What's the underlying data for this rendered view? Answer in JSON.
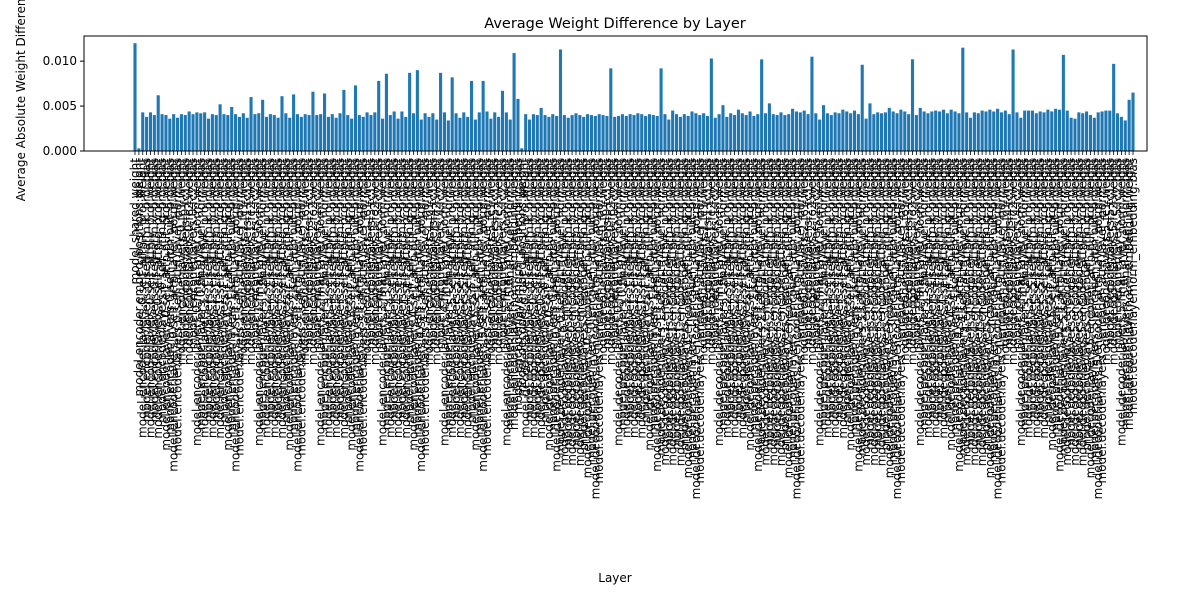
{
  "chart_data": {
    "type": "bar",
    "title": "Average Weight Difference by Layer",
    "xlabel": "Layer",
    "ylabel": "Average Absolute Weight Difference",
    "color": "#1f77b4",
    "ylim": [
      0,
      0.0128
    ],
    "yticks": [
      {
        "value": 0,
        "label": "0.000"
      },
      {
        "value": 0.005,
        "label": "0.005"
      },
      {
        "value": 0.01,
        "label": "0.010"
      }
    ],
    "categories": [
      "model.shared.weight",
      "model.encoder.embed_positions.weight",
      "model.encoder.layers.0.self_attn.k_proj.weight",
      "model.encoder.layers.0.self_attn.k_proj.bias",
      "model.encoder.layers.0.self_attn.v_proj.weight",
      "model.encoder.layers.0.self_attn.v_proj.bias",
      "model.encoder.layers.0.self_attn.q_proj.weight",
      "model.encoder.layers.0.self_attn.q_proj.bias",
      "model.encoder.layers.0.self_attn.out_proj.weight",
      "model.encoder.layers.0.self_attn.out_proj.bias",
      "model.encoder.layers.0.self_attn_layer_norm.weight",
      "model.encoder.layers.0.self_attn_layer_norm.bias",
      "model.encoder.layers.0.fc1.weight",
      "model.encoder.layers.0.fc1.bias",
      "model.encoder.layers.0.fc2.weight",
      "model.encoder.layers.0.fc2.bias",
      "model.encoder.layers.0.final_layer_norm.weight",
      "model.encoder.layers.0.final_layer_norm.bias",
      "model.encoder.layers.1.self_attn.k_proj.weight",
      "model.encoder.layers.1.self_attn.k_proj.bias",
      "model.encoder.layers.1.self_attn.v_proj.weight",
      "model.encoder.layers.1.self_attn.v_proj.bias",
      "model.encoder.layers.1.self_attn.q_proj.weight",
      "model.encoder.layers.1.self_attn.q_proj.bias",
      "model.encoder.layers.1.self_attn.out_proj.weight",
      "model.encoder.layers.1.self_attn.out_proj.bias",
      "model.encoder.layers.1.self_attn_layer_norm.weight",
      "model.encoder.layers.1.self_attn_layer_norm.bias",
      "model.encoder.layers.1.fc1.weight",
      "model.encoder.layers.1.fc1.bias",
      "model.encoder.layers.1.fc2.weight",
      "model.encoder.layers.1.fc2.bias",
      "model.encoder.layers.1.final_layer_norm.weight",
      "model.encoder.layers.1.final_layer_norm.bias",
      "model.encoder.layers.2.self_attn.k_proj.weight",
      "model.encoder.layers.2.self_attn.k_proj.bias",
      "model.encoder.layers.2.self_attn.v_proj.weight",
      "model.encoder.layers.2.self_attn.v_proj.bias",
      "model.encoder.layers.2.self_attn.q_proj.weight",
      "model.encoder.layers.2.self_attn.q_proj.bias",
      "model.encoder.layers.2.self_attn.out_proj.weight",
      "model.encoder.layers.2.self_attn.out_proj.bias",
      "model.encoder.layers.2.self_attn_layer_norm.weight",
      "model.encoder.layers.2.self_attn_layer_norm.bias",
      "model.encoder.layers.2.fc1.weight",
      "model.encoder.layers.2.fc1.bias",
      "model.encoder.layers.2.fc2.weight",
      "model.encoder.layers.2.fc2.bias",
      "model.encoder.layers.2.final_layer_norm.weight",
      "model.encoder.layers.2.final_layer_norm.bias",
      "model.encoder.layers.3.self_attn.k_proj.weight",
      "model.encoder.layers.3.self_attn.k_proj.bias",
      "model.encoder.layers.3.self_attn.v_proj.weight",
      "model.encoder.layers.3.self_attn.v_proj.bias",
      "model.encoder.layers.3.self_attn.q_proj.weight",
      "model.encoder.layers.3.self_attn.q_proj.bias",
      "model.encoder.layers.3.self_attn.out_proj.weight",
      "model.encoder.layers.3.self_attn.out_proj.bias",
      "model.encoder.layers.3.self_attn_layer_norm.weight",
      "model.encoder.layers.3.self_attn_layer_norm.bias",
      "model.encoder.layers.3.fc1.weight",
      "model.encoder.layers.3.fc1.bias",
      "model.encoder.layers.3.fc2.weight",
      "model.encoder.layers.3.fc2.bias",
      "model.encoder.layers.3.final_layer_norm.weight",
      "model.encoder.layers.3.final_layer_norm.bias",
      "model.encoder.layers.4.self_attn.k_proj.weight",
      "model.encoder.layers.4.self_attn.k_proj.bias",
      "model.encoder.layers.4.self_attn.v_proj.weight",
      "model.encoder.layers.4.self_attn.v_proj.bias",
      "model.encoder.layers.4.self_attn.q_proj.weight",
      "model.encoder.layers.4.self_attn.q_proj.bias",
      "model.encoder.layers.4.self_attn.out_proj.weight",
      "model.encoder.layers.4.self_attn.out_proj.bias",
      "model.encoder.layers.4.self_attn_layer_norm.weight",
      "model.encoder.layers.4.self_attn_layer_norm.bias",
      "model.encoder.layers.4.fc1.weight",
      "model.encoder.layers.4.fc1.bias",
      "model.encoder.layers.4.fc2.weight",
      "model.encoder.layers.4.fc2.bias",
      "model.encoder.layers.4.final_layer_norm.weight",
      "model.encoder.layers.4.final_layer_norm.bias",
      "model.encoder.layers.5.self_attn.k_proj.weight",
      "model.encoder.layers.5.self_attn.k_proj.bias",
      "model.encoder.layers.5.self_attn.v_proj.weight",
      "model.encoder.layers.5.self_attn.v_proj.bias",
      "model.encoder.layers.5.self_attn.q_proj.weight",
      "model.encoder.layers.5.self_attn.q_proj.bias",
      "model.encoder.layers.5.self_attn.out_proj.weight",
      "model.encoder.layers.5.self_attn.out_proj.bias",
      "model.encoder.layers.5.self_attn_layer_norm.weight",
      "model.encoder.layers.5.self_attn_layer_norm.bias",
      "model.encoder.layers.5.fc1.weight",
      "model.encoder.layers.5.fc1.bias",
      "model.encoder.layers.5.fc2.weight",
      "model.encoder.layers.5.fc2.bias",
      "model.encoder.layers.5.final_layer_norm.weight",
      "model.encoder.layers.5.final_layer_norm.bias",
      "model.encoder.layernorm_embedding.weight",
      "model.encoder.layernorm_embedding.bias",
      "model.decoder.embed_positions.weight",
      "model.decoder.layers.0.self_attn.k_proj.weight",
      "model.decoder.layers.0.self_attn.k_proj.bias",
      "model.decoder.layers.0.self_attn.v_proj.weight",
      "model.decoder.layers.0.self_attn.v_proj.bias",
      "model.decoder.layers.0.self_attn.q_proj.weight",
      "model.decoder.layers.0.self_attn.q_proj.bias",
      "model.decoder.layers.0.self_attn.out_proj.weight",
      "model.decoder.layers.0.self_attn.out_proj.bias",
      "model.decoder.layers.0.self_attn_layer_norm.weight",
      "model.decoder.layers.0.self_attn_layer_norm.bias",
      "model.decoder.layers.0.encoder_attn.k_proj.weight",
      "model.decoder.layers.0.encoder_attn.k_proj.bias",
      "model.decoder.layers.0.encoder_attn.v_proj.weight",
      "model.decoder.layers.0.encoder_attn.v_proj.bias",
      "model.decoder.layers.0.encoder_attn.q_proj.weight",
      "model.decoder.layers.0.encoder_attn.q_proj.bias",
      "model.decoder.layers.0.encoder_attn.out_proj.weight",
      "model.decoder.layers.0.encoder_attn.out_proj.bias",
      "model.decoder.layers.0.encoder_attn_layer_norm.weight",
      "model.decoder.layers.0.encoder_attn_layer_norm.bias",
      "model.decoder.layers.0.fc1.weight",
      "model.decoder.layers.0.fc1.bias",
      "model.decoder.layers.0.fc2.weight",
      "model.decoder.layers.0.fc2.bias",
      "model.decoder.layers.0.final_layer_norm.weight",
      "model.decoder.layers.0.final_layer_norm.bias",
      "model.decoder.layers.1.self_attn.k_proj.weight",
      "model.decoder.layers.1.self_attn.k_proj.bias",
      "model.decoder.layers.1.self_attn.v_proj.weight",
      "model.decoder.layers.1.self_attn.v_proj.bias",
      "model.decoder.layers.1.self_attn.q_proj.weight",
      "model.decoder.layers.1.self_attn.q_proj.bias",
      "model.decoder.layers.1.self_attn.out_proj.weight",
      "model.decoder.layers.1.self_attn.out_proj.bias",
      "model.decoder.layers.1.self_attn_layer_norm.weight",
      "model.decoder.layers.1.self_attn_layer_norm.bias",
      "model.decoder.layers.1.encoder_attn.k_proj.weight",
      "model.decoder.layers.1.encoder_attn.k_proj.bias",
      "model.decoder.layers.1.encoder_attn.v_proj.weight",
      "model.decoder.layers.1.encoder_attn.v_proj.bias",
      "model.decoder.layers.1.encoder_attn.q_proj.weight",
      "model.decoder.layers.1.encoder_attn.q_proj.bias",
      "model.decoder.layers.1.encoder_attn.out_proj.weight",
      "model.decoder.layers.1.encoder_attn.out_proj.bias",
      "model.decoder.layers.1.encoder_attn_layer_norm.weight",
      "model.decoder.layers.1.encoder_attn_layer_norm.bias",
      "model.decoder.layers.1.fc1.weight",
      "model.decoder.layers.1.fc1.bias",
      "model.decoder.layers.1.fc2.weight",
      "model.decoder.layers.1.fc2.bias",
      "model.decoder.layers.1.final_layer_norm.weight",
      "model.decoder.layers.1.final_layer_norm.bias",
      "model.decoder.layers.2.self_attn.k_proj.weight",
      "model.decoder.layers.2.self_attn.k_proj.bias",
      "model.decoder.layers.2.self_attn.v_proj.weight",
      "model.decoder.layers.2.self_attn.v_proj.bias",
      "model.decoder.layers.2.self_attn.q_proj.weight",
      "model.decoder.layers.2.self_attn.q_proj.bias",
      "model.decoder.layers.2.self_attn.out_proj.weight",
      "model.decoder.layers.2.self_attn.out_proj.bias",
      "model.decoder.layers.2.self_attn_layer_norm.weight",
      "model.decoder.layers.2.self_attn_layer_norm.bias",
      "model.decoder.layers.2.encoder_attn.k_proj.weight",
      "model.decoder.layers.2.encoder_attn.k_proj.bias",
      "model.decoder.layers.2.encoder_attn.v_proj.weight",
      "model.decoder.layers.2.encoder_attn.v_proj.bias",
      "model.decoder.layers.2.encoder_attn.q_proj.weight",
      "model.decoder.layers.2.encoder_attn.q_proj.bias",
      "model.decoder.layers.2.encoder_attn.out_proj.weight",
      "model.decoder.layers.2.encoder_attn.out_proj.bias",
      "model.decoder.layers.2.encoder_attn_layer_norm.weight",
      "model.decoder.layers.2.encoder_attn_layer_norm.bias",
      "model.decoder.layers.2.fc1.weight",
      "model.decoder.layers.2.fc1.bias",
      "model.decoder.layers.2.fc2.weight",
      "model.decoder.layers.2.fc2.bias",
      "model.decoder.layers.2.final_layer_norm.weight",
      "model.decoder.layers.2.final_layer_norm.bias",
      "model.decoder.layers.3.self_attn.k_proj.weight",
      "model.decoder.layers.3.self_attn.k_proj.bias",
      "model.decoder.layers.3.self_attn.v_proj.weight",
      "model.decoder.layers.3.self_attn.v_proj.bias",
      "model.decoder.layers.3.self_attn.q_proj.weight",
      "model.decoder.layers.3.self_attn.q_proj.bias",
      "model.decoder.layers.3.self_attn.out_proj.weight",
      "model.decoder.layers.3.self_attn.out_proj.bias",
      "model.decoder.layers.3.self_attn_layer_norm.weight",
      "model.decoder.layers.3.self_attn_layer_norm.bias",
      "model.decoder.layers.3.encoder_attn.k_proj.weight",
      "model.decoder.layers.3.encoder_attn.k_proj.bias",
      "model.decoder.layers.3.encoder_attn.v_proj.weight",
      "model.decoder.layers.3.encoder_attn.v_proj.bias",
      "model.decoder.layers.3.encoder_attn.q_proj.weight",
      "model.decoder.layers.3.encoder_attn.q_proj.bias",
      "model.decoder.layers.3.encoder_attn.out_proj.weight",
      "model.decoder.layers.3.encoder_attn.out_proj.bias",
      "model.decoder.layers.3.encoder_attn_layer_norm.weight",
      "model.decoder.layers.3.encoder_attn_layer_norm.bias",
      "model.decoder.layers.3.fc1.weight",
      "model.decoder.layers.3.fc1.bias",
      "model.decoder.layers.3.fc2.weight",
      "model.decoder.layers.3.fc2.bias",
      "model.decoder.layers.3.final_layer_norm.weight",
      "model.decoder.layers.3.final_layer_norm.bias",
      "model.decoder.layers.4.self_attn.k_proj.weight",
      "model.decoder.layers.4.self_attn.k_proj.bias",
      "model.decoder.layers.4.self_attn.v_proj.weight",
      "model.decoder.layers.4.self_attn.v_proj.bias",
      "model.decoder.layers.4.self_attn.q_proj.weight",
      "model.decoder.layers.4.self_attn.q_proj.bias",
      "model.decoder.layers.4.self_attn.out_proj.weight",
      "model.decoder.layers.4.self_attn.out_proj.bias",
      "model.decoder.layers.4.self_attn_layer_norm.weight",
      "model.decoder.layers.4.self_attn_layer_norm.bias",
      "model.decoder.layers.4.encoder_attn.k_proj.weight",
      "model.decoder.layers.4.encoder_attn.k_proj.bias",
      "model.decoder.layers.4.encoder_attn.v_proj.weight",
      "model.decoder.layers.4.encoder_attn.v_proj.bias",
      "model.decoder.layers.4.encoder_attn.q_proj.weight",
      "model.decoder.layers.4.encoder_attn.q_proj.bias",
      "model.decoder.layers.4.encoder_attn.out_proj.weight",
      "model.decoder.layers.4.encoder_attn.out_proj.bias",
      "model.decoder.layers.4.encoder_attn_layer_norm.weight",
      "model.decoder.layers.4.encoder_attn_layer_norm.bias",
      "model.decoder.layers.4.fc1.weight",
      "model.decoder.layers.4.fc1.bias",
      "model.decoder.layers.4.fc2.weight",
      "model.decoder.layers.4.fc2.bias",
      "model.decoder.layers.4.final_layer_norm.weight",
      "model.decoder.layers.4.final_layer_norm.bias",
      "model.decoder.layers.5.self_attn.k_proj.weight",
      "model.decoder.layers.5.self_attn.k_proj.bias",
      "model.decoder.layers.5.self_attn.v_proj.weight",
      "model.decoder.layers.5.self_attn.v_proj.bias",
      "model.decoder.layers.5.self_attn.q_proj.weight",
      "model.decoder.layers.5.self_attn.q_proj.bias",
      "model.decoder.layers.5.self_attn.out_proj.weight",
      "model.decoder.layers.5.self_attn.out_proj.bias",
      "model.decoder.layers.5.self_attn_layer_norm.weight",
      "model.decoder.layers.5.self_attn_layer_norm.bias",
      "model.decoder.layers.5.encoder_attn.k_proj.weight",
      "model.decoder.layers.5.encoder_attn.k_proj.bias",
      "model.decoder.layers.5.encoder_attn.v_proj.weight",
      "model.decoder.layers.5.encoder_attn.v_proj.bias",
      "model.decoder.layers.5.encoder_attn.q_proj.weight",
      "model.decoder.layers.5.encoder_attn.q_proj.bias",
      "model.decoder.layers.5.encoder_attn.out_proj.weight",
      "model.decoder.layers.5.encoder_attn.out_proj.bias",
      "model.decoder.layers.5.encoder_attn_layer_norm.weight",
      "model.decoder.layers.5.encoder_attn_layer_norm.bias",
      "model.decoder.layers.5.fc1.weight",
      "model.decoder.layers.5.fc1.bias",
      "model.decoder.layers.5.fc2.weight",
      "model.decoder.layers.5.fc2.bias",
      "model.decoder.layers.5.final_layer_norm.weight",
      "model.decoder.layers.5.final_layer_norm.bias",
      "model.decoder.layernorm_embedding.weight",
      "model.decoder.layernorm_embedding.bias"
    ],
    "values": [
      0.012,
      0.0003,
      0.0043,
      0.0038,
      0.0043,
      0.004,
      0.0062,
      0.0041,
      0.004,
      0.0036,
      0.0041,
      0.0037,
      0.0041,
      0.004,
      0.0044,
      0.0041,
      0.0043,
      0.0042,
      0.0043,
      0.0036,
      0.0041,
      0.004,
      0.0052,
      0.0041,
      0.004,
      0.0049,
      0.0041,
      0.0038,
      0.0042,
      0.0037,
      0.006,
      0.0041,
      0.0042,
      0.0057,
      0.0038,
      0.0041,
      0.004,
      0.0037,
      0.0061,
      0.0042,
      0.0037,
      0.0063,
      0.0041,
      0.0038,
      0.0041,
      0.004,
      0.0066,
      0.004,
      0.0041,
      0.0064,
      0.0038,
      0.0041,
      0.0037,
      0.0042,
      0.0068,
      0.004,
      0.0036,
      0.0073,
      0.004,
      0.0038,
      0.0043,
      0.004,
      0.0043,
      0.0078,
      0.0036,
      0.0086,
      0.004,
      0.0044,
      0.0036,
      0.0044,
      0.0038,
      0.0087,
      0.0042,
      0.009,
      0.0035,
      0.0042,
      0.0038,
      0.0042,
      0.0035,
      0.0087,
      0.0043,
      0.0034,
      0.0082,
      0.0042,
      0.0037,
      0.0043,
      0.0038,
      0.0078,
      0.0035,
      0.0043,
      0.0078,
      0.0044,
      0.0036,
      0.0043,
      0.0038,
      0.0067,
      0.0043,
      0.0035,
      0.0109,
      0.0058,
      0.0003,
      0.0041,
      0.0035,
      0.0041,
      0.004,
      0.0048,
      0.004,
      0.0038,
      0.0041,
      0.0039,
      0.0113,
      0.004,
      0.0037,
      0.004,
      0.0042,
      0.004,
      0.0038,
      0.0041,
      0.004,
      0.0039,
      0.0041,
      0.004,
      0.0039,
      0.0092,
      0.0038,
      0.0039,
      0.0041,
      0.0039,
      0.0041,
      0.004,
      0.0042,
      0.0041,
      0.0039,
      0.0041,
      0.004,
      0.0039,
      0.0092,
      0.0041,
      0.0035,
      0.0045,
      0.0041,
      0.0038,
      0.0041,
      0.0039,
      0.0044,
      0.0042,
      0.004,
      0.0042,
      0.0039,
      0.0103,
      0.0037,
      0.0041,
      0.0051,
      0.0038,
      0.0042,
      0.004,
      0.0046,
      0.0042,
      0.004,
      0.0044,
      0.0039,
      0.0041,
      0.0102,
      0.0042,
      0.0053,
      0.0041,
      0.004,
      0.0043,
      0.004,
      0.0041,
      0.0047,
      0.0044,
      0.0043,
      0.0045,
      0.0041,
      0.0105,
      0.0042,
      0.0035,
      0.0051,
      0.0042,
      0.004,
      0.0043,
      0.0042,
      0.0046,
      0.0044,
      0.0042,
      0.0045,
      0.0041,
      0.0096,
      0.0036,
      0.0053,
      0.0041,
      0.0043,
      0.0042,
      0.0043,
      0.0048,
      0.0044,
      0.0042,
      0.0046,
      0.0044,
      0.0041,
      0.0102,
      0.004,
      0.0048,
      0.0044,
      0.0042,
      0.0044,
      0.0045,
      0.0044,
      0.0046,
      0.0042,
      0.0046,
      0.0044,
      0.0042,
      0.0115,
      0.0043,
      0.0037,
      0.0043,
      0.0042,
      0.0045,
      0.0044,
      0.0046,
      0.0044,
      0.0047,
      0.0043,
      0.0045,
      0.0041,
      0.0113,
      0.0043,
      0.0037,
      0.0045,
      0.0045,
      0.0045,
      0.0042,
      0.0044,
      0.0043,
      0.0046,
      0.0044,
      0.0047,
      0.0046,
      0.0107,
      0.0045,
      0.0037,
      0.0036,
      0.0043,
      0.0042,
      0.0044,
      0.004,
      0.0037,
      0.0043,
      0.0044,
      0.0045,
      0.0045,
      0.0097,
      0.0042,
      0.0038,
      0.0034,
      0.0057,
      0.0065
    ]
  }
}
